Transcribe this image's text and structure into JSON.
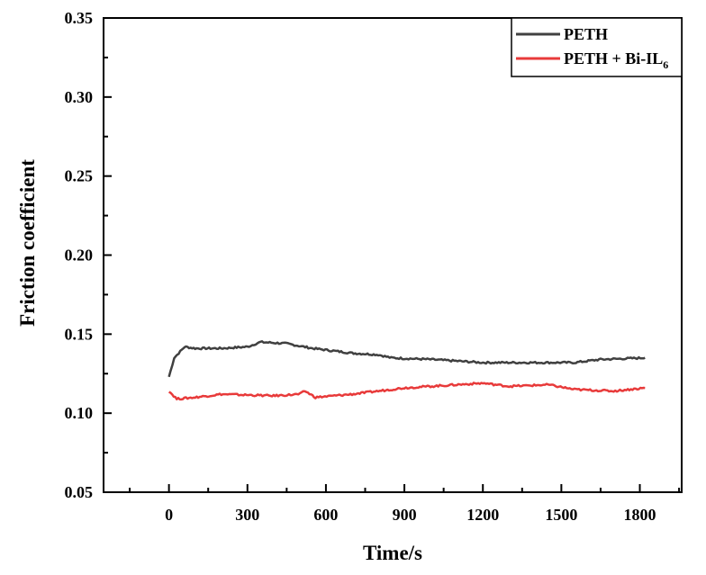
{
  "chart_data": {
    "type": "line",
    "title": "",
    "xlabel": "Time/s",
    "ylabel": "Friction coefficient",
    "xlim": [
      -250,
      1960
    ],
    "ylim": [
      0.05,
      0.35
    ],
    "xticks": [
      "0",
      "300",
      "600",
      "900",
      "1200",
      "1500",
      "1800"
    ],
    "yticks": [
      "0.05",
      "0.10",
      "0.15",
      "0.20",
      "0.25",
      "0.30",
      "0.35"
    ],
    "grid": false,
    "legend_position": "top-right",
    "series": [
      {
        "name": "PETH",
        "color": "#404040",
        "x": [
          0,
          20,
          60,
          100,
          200,
          300,
          350,
          450,
          550,
          700,
          800,
          850,
          1000,
          1200,
          1400,
          1550,
          1650,
          1820
        ],
        "y": [
          0.123,
          0.135,
          0.142,
          0.141,
          0.141,
          0.142,
          0.145,
          0.144,
          0.141,
          0.138,
          0.137,
          0.135,
          0.134,
          0.132,
          0.132,
          0.132,
          0.134,
          0.135
        ]
      },
      {
        "name": "PETH + Bi-IL",
        "name_subscript": "6",
        "color": "#e83a3a",
        "x": [
          0,
          30,
          100,
          200,
          400,
          500,
          520,
          560,
          700,
          800,
          900,
          1000,
          1100,
          1200,
          1300,
          1450,
          1550,
          1700,
          1820
        ],
        "y": [
          0.114,
          0.109,
          0.11,
          0.112,
          0.111,
          0.112,
          0.114,
          0.11,
          0.112,
          0.114,
          0.116,
          0.117,
          0.118,
          0.119,
          0.117,
          0.118,
          0.115,
          0.114,
          0.116
        ]
      }
    ]
  }
}
